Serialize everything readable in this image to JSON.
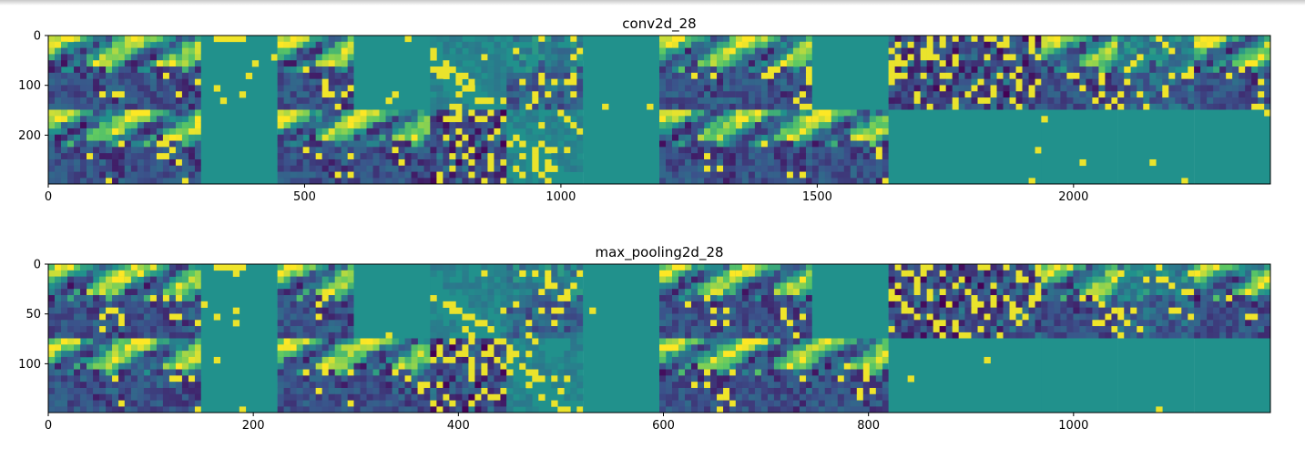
{
  "chart_data": [
    {
      "type": "heatmap",
      "title": "conv2d_28",
      "xticks": [
        0,
        500,
        1000,
        1500,
        2000
      ],
      "yticks": [
        0,
        100,
        200
      ],
      "xlim": [
        0,
        2384
      ],
      "ylim": [
        298,
        0
      ],
      "grid_rows": 2,
      "grid_cols": 16,
      "colormap": "viridis",
      "panel_patterns": [
        [
          "landscape",
          "landscape",
          "sparse-top",
          "landscape",
          "sparse",
          "speckle-mid",
          "speckle",
          "sparse",
          "landscape",
          "landscape",
          "sparse",
          "edges",
          "edges",
          "landscape",
          "speckle",
          "landscape"
        ],
        [
          "landscape",
          "landscape",
          "sparse",
          "landscape",
          "landscape",
          "edges",
          "speckle-mid",
          "blank",
          "landscape",
          "landscape",
          "landscape",
          "sparse",
          "sparse",
          "sparse",
          "sparse",
          "sparse"
        ]
      ]
    },
    {
      "type": "heatmap",
      "title": "max_pooling2d_28",
      "xticks": [
        0,
        200,
        400,
        600,
        800,
        1000
      ],
      "yticks": [
        0,
        50,
        100
      ],
      "xlim": [
        0,
        1192
      ],
      "ylim": [
        149,
        0
      ],
      "grid_rows": 2,
      "grid_cols": 16,
      "colormap": "viridis",
      "panel_patterns": [
        [
          "landscape",
          "landscape",
          "sparse-top",
          "landscape",
          "sparse",
          "speckle-mid",
          "speckle",
          "sparse",
          "landscape",
          "landscape",
          "sparse",
          "edges",
          "edges",
          "landscape",
          "speckle",
          "landscape"
        ],
        [
          "landscape",
          "landscape",
          "sparse",
          "landscape",
          "landscape",
          "edges",
          "speckle-mid",
          "blank",
          "landscape",
          "landscape",
          "landscape",
          "sparse",
          "sparse",
          "sparse",
          "sparse",
          "sparse"
        ]
      ]
    }
  ],
  "colors": {
    "viridis": [
      "#440154",
      "#3b528b",
      "#21918c",
      "#5ec962",
      "#fde725"
    ],
    "background": "#2a8a8b"
  }
}
